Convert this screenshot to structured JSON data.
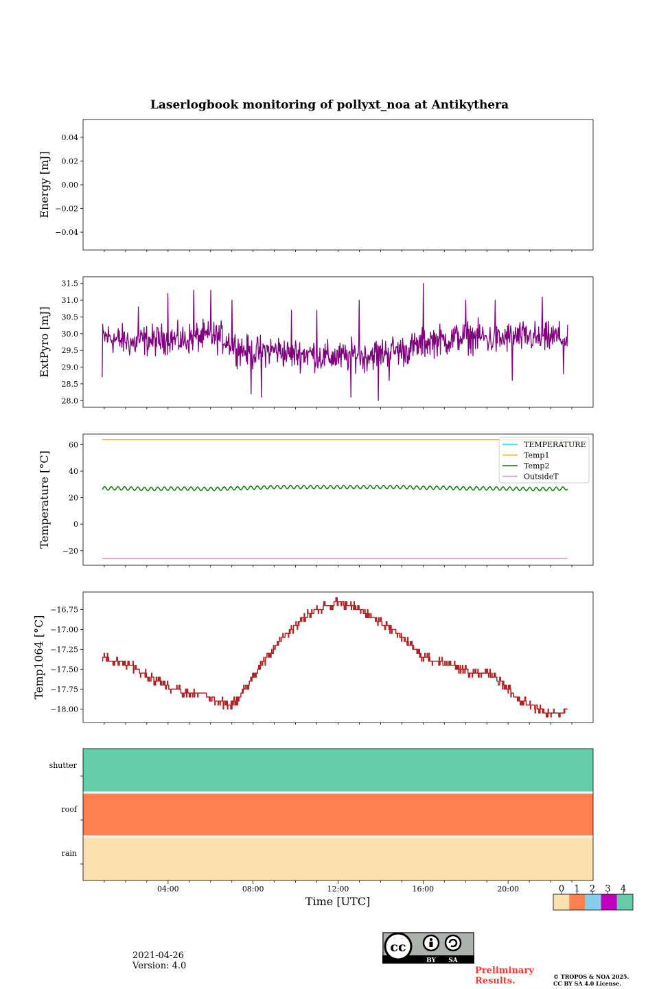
{
  "figure": {
    "title": "Laserlogbook monitoring of pollyxt_noa at Antikythera",
    "date": "2021-04-26",
    "version": "Version: 4.0",
    "preliminary": "Preliminary\nResults.",
    "copyright_line1": "© TROPOS & NOA 2025.",
    "copyright_line2": "CC BY SA 4.0 License.",
    "license_badge": {
      "cc": "cc",
      "by": "BY",
      "sa": "SA"
    }
  },
  "chart_data": [
    {
      "type": "line",
      "id": "energy",
      "ylabel": "Energy [mJ]",
      "ylim": [
        -0.055,
        0.055
      ],
      "yticks": [
        0.04,
        0.02,
        0.0,
        -0.02,
        -0.04
      ],
      "ytick_labels": [
        "0.04",
        "0.02",
        "0.00",
        "−0.02",
        "−0.04"
      ],
      "series": []
    },
    {
      "type": "line",
      "id": "extpyro",
      "ylabel": "ExtPyro [mJ]",
      "ylim": [
        27.8,
        31.7
      ],
      "yticks": [
        28.0,
        28.5,
        29.0,
        29.5,
        30.0,
        30.5,
        31.0,
        31.5
      ],
      "ytick_labels": [
        "28.0",
        "28.5",
        "29.0",
        "29.5",
        "30.0",
        "30.5",
        "31.0",
        "31.5"
      ],
      "series": [
        {
          "color": "#800080",
          "x": [
            0.9,
            1.2,
            1.6,
            2.0,
            2.4,
            2.8,
            3.2,
            3.6,
            4.0,
            4.4,
            4.8,
            5.2,
            5.6,
            6.0,
            6.4,
            6.8,
            7.2,
            7.6,
            8.0,
            8.4,
            8.8,
            9.2,
            9.6,
            10.0,
            10.4,
            10.8,
            11.2,
            11.6,
            12.0,
            12.4,
            12.8,
            13.2,
            13.6,
            14.0,
            14.4,
            14.8,
            15.2,
            15.6,
            16.0,
            16.4,
            16.8,
            17.2,
            17.6,
            18.0,
            18.4,
            18.8,
            19.2,
            19.6,
            20.0,
            20.4,
            20.8,
            21.2,
            21.6,
            22.0,
            22.4,
            22.8
          ],
          "y": [
            29.9,
            29.9,
            29.8,
            29.8,
            29.7,
            29.8,
            29.8,
            29.8,
            29.9,
            29.8,
            29.8,
            29.9,
            29.9,
            29.9,
            29.9,
            29.8,
            29.6,
            29.5,
            29.4,
            29.5,
            29.5,
            29.5,
            29.4,
            29.4,
            29.4,
            29.4,
            29.3,
            29.3,
            29.3,
            29.3,
            29.4,
            29.3,
            29.4,
            29.4,
            29.5,
            29.5,
            29.5,
            29.6,
            29.7,
            29.8,
            29.8,
            29.8,
            29.9,
            29.9,
            29.9,
            29.9,
            29.8,
            29.8,
            29.9,
            29.9,
            29.9,
            29.9,
            29.8,
            29.9,
            29.9,
            29.7
          ],
          "noise": 0.45,
          "spikes_high": [
            [
              2.6,
              30.8
            ],
            [
              4.0,
              31.2
            ],
            [
              5.2,
              31.3
            ],
            [
              6.0,
              31.3
            ],
            [
              7.0,
              31.0
            ],
            [
              9.8,
              30.7
            ],
            [
              11.0,
              30.7
            ],
            [
              13.0,
              31.0
            ],
            [
              16.0,
              31.5
            ],
            [
              18.0,
              31.0
            ],
            [
              19.4,
              31.0
            ],
            [
              21.6,
              31.1
            ],
            [
              22.6,
              31.0
            ]
          ],
          "spikes_low": [
            [
              0.9,
              28.7
            ],
            [
              7.9,
              28.2
            ],
            [
              8.4,
              28.1
            ],
            [
              12.6,
              28.1
            ],
            [
              13.9,
              28.0
            ],
            [
              14.4,
              28.6
            ],
            [
              20.2,
              28.6
            ],
            [
              22.6,
              28.8
            ]
          ]
        }
      ]
    },
    {
      "type": "line",
      "id": "temperature",
      "ylabel": "Temperature [°C]",
      "ylim": [
        -31,
        68
      ],
      "yticks": [
        60,
        40,
        20,
        0,
        -20
      ],
      "ytick_labels": [
        "60",
        "40",
        "20",
        "0",
        "−20"
      ],
      "legend": "top-right",
      "series": [
        {
          "name": "TEMPERATURE",
          "color": "#00e5e5",
          "x": [],
          "y": []
        },
        {
          "name": "Temp1",
          "color": "#ffa500",
          "x": [
            0.9,
            22.8
          ],
          "y": [
            64,
            64
          ]
        },
        {
          "name": "Temp2",
          "color": "#008000",
          "x": [
            0.9,
            2,
            3,
            4,
            5,
            6,
            7,
            8,
            9,
            10,
            11,
            12,
            13,
            14,
            15,
            16,
            17,
            18,
            19,
            20,
            21,
            22,
            22.8
          ],
          "y": [
            27,
            27,
            26.5,
            26.8,
            26.8,
            26.5,
            27,
            27.5,
            28,
            28,
            28,
            28,
            28,
            28,
            28,
            27.5,
            27.5,
            27,
            27,
            26.8,
            26.5,
            26.5,
            27
          ],
          "ripple": 1.3
        },
        {
          "name": "OutsideT",
          "color": "#ee82ee",
          "x": [
            0.9,
            22.8
          ],
          "y": [
            -26,
            -26
          ]
        }
      ]
    },
    {
      "type": "line",
      "id": "temp1064",
      "ylabel": "Temp1064 [°C]",
      "ylim": [
        -18.17,
        -16.53
      ],
      "yticks": [
        -16.75,
        -17.0,
        -17.25,
        -17.5,
        -17.75,
        -18.0
      ],
      "ytick_labels": [
        "−16.75",
        "−17.00",
        "−17.25",
        "−17.50",
        "−17.75",
        "−18.00"
      ],
      "series": [
        {
          "color": "#b22222",
          "step": 0.1,
          "x": [
            0.9,
            1.5,
            2.2,
            2.8,
            3.5,
            4.2,
            5.0,
            5.6,
            6.2,
            6.8,
            7.2,
            7.6,
            8.0,
            8.4,
            8.8,
            9.2,
            9.6,
            10.0,
            10.4,
            11.0,
            11.6,
            12.0,
            12.5,
            13.0,
            13.6,
            14.2,
            14.6,
            15.2,
            15.6,
            16.0,
            16.6,
            17.2,
            17.8,
            18.4,
            19.0,
            19.6,
            20.0,
            20.4,
            20.8,
            21.2,
            21.6,
            22.0,
            22.4,
            22.8
          ],
          "y": [
            -17.35,
            -17.4,
            -17.45,
            -17.55,
            -17.65,
            -17.75,
            -17.8,
            -17.8,
            -17.88,
            -17.95,
            -17.9,
            -17.75,
            -17.6,
            -17.45,
            -17.3,
            -17.15,
            -17.05,
            -16.95,
            -16.85,
            -16.75,
            -16.7,
            -16.65,
            -16.7,
            -16.75,
            -16.85,
            -16.95,
            -17.0,
            -17.15,
            -17.25,
            -17.35,
            -17.4,
            -17.45,
            -17.5,
            -17.55,
            -17.55,
            -17.65,
            -17.75,
            -17.85,
            -17.92,
            -17.97,
            -18.02,
            -18.05,
            -18.05,
            -18.0
          ]
        }
      ]
    },
    {
      "type": "heatmap",
      "id": "status",
      "rows": [
        "shutter",
        "roof",
        "rain"
      ],
      "values": [
        4,
        1,
        0
      ],
      "colorbar": {
        "ticks": [
          "0",
          "1",
          "2",
          "3",
          "4"
        ],
        "colors": [
          "#fde0b0",
          "#ff7f50",
          "#87ceeb",
          "#c000c0",
          "#66cdaa"
        ]
      }
    }
  ],
  "xaxis": {
    "label": "Time [UTC]",
    "xlim": [
      0,
      24
    ],
    "tick_values": [
      4,
      8,
      12,
      16,
      20
    ],
    "tick_labels": [
      "04:00",
      "08:00",
      "12:00",
      "16:00",
      "20:00"
    ]
  }
}
